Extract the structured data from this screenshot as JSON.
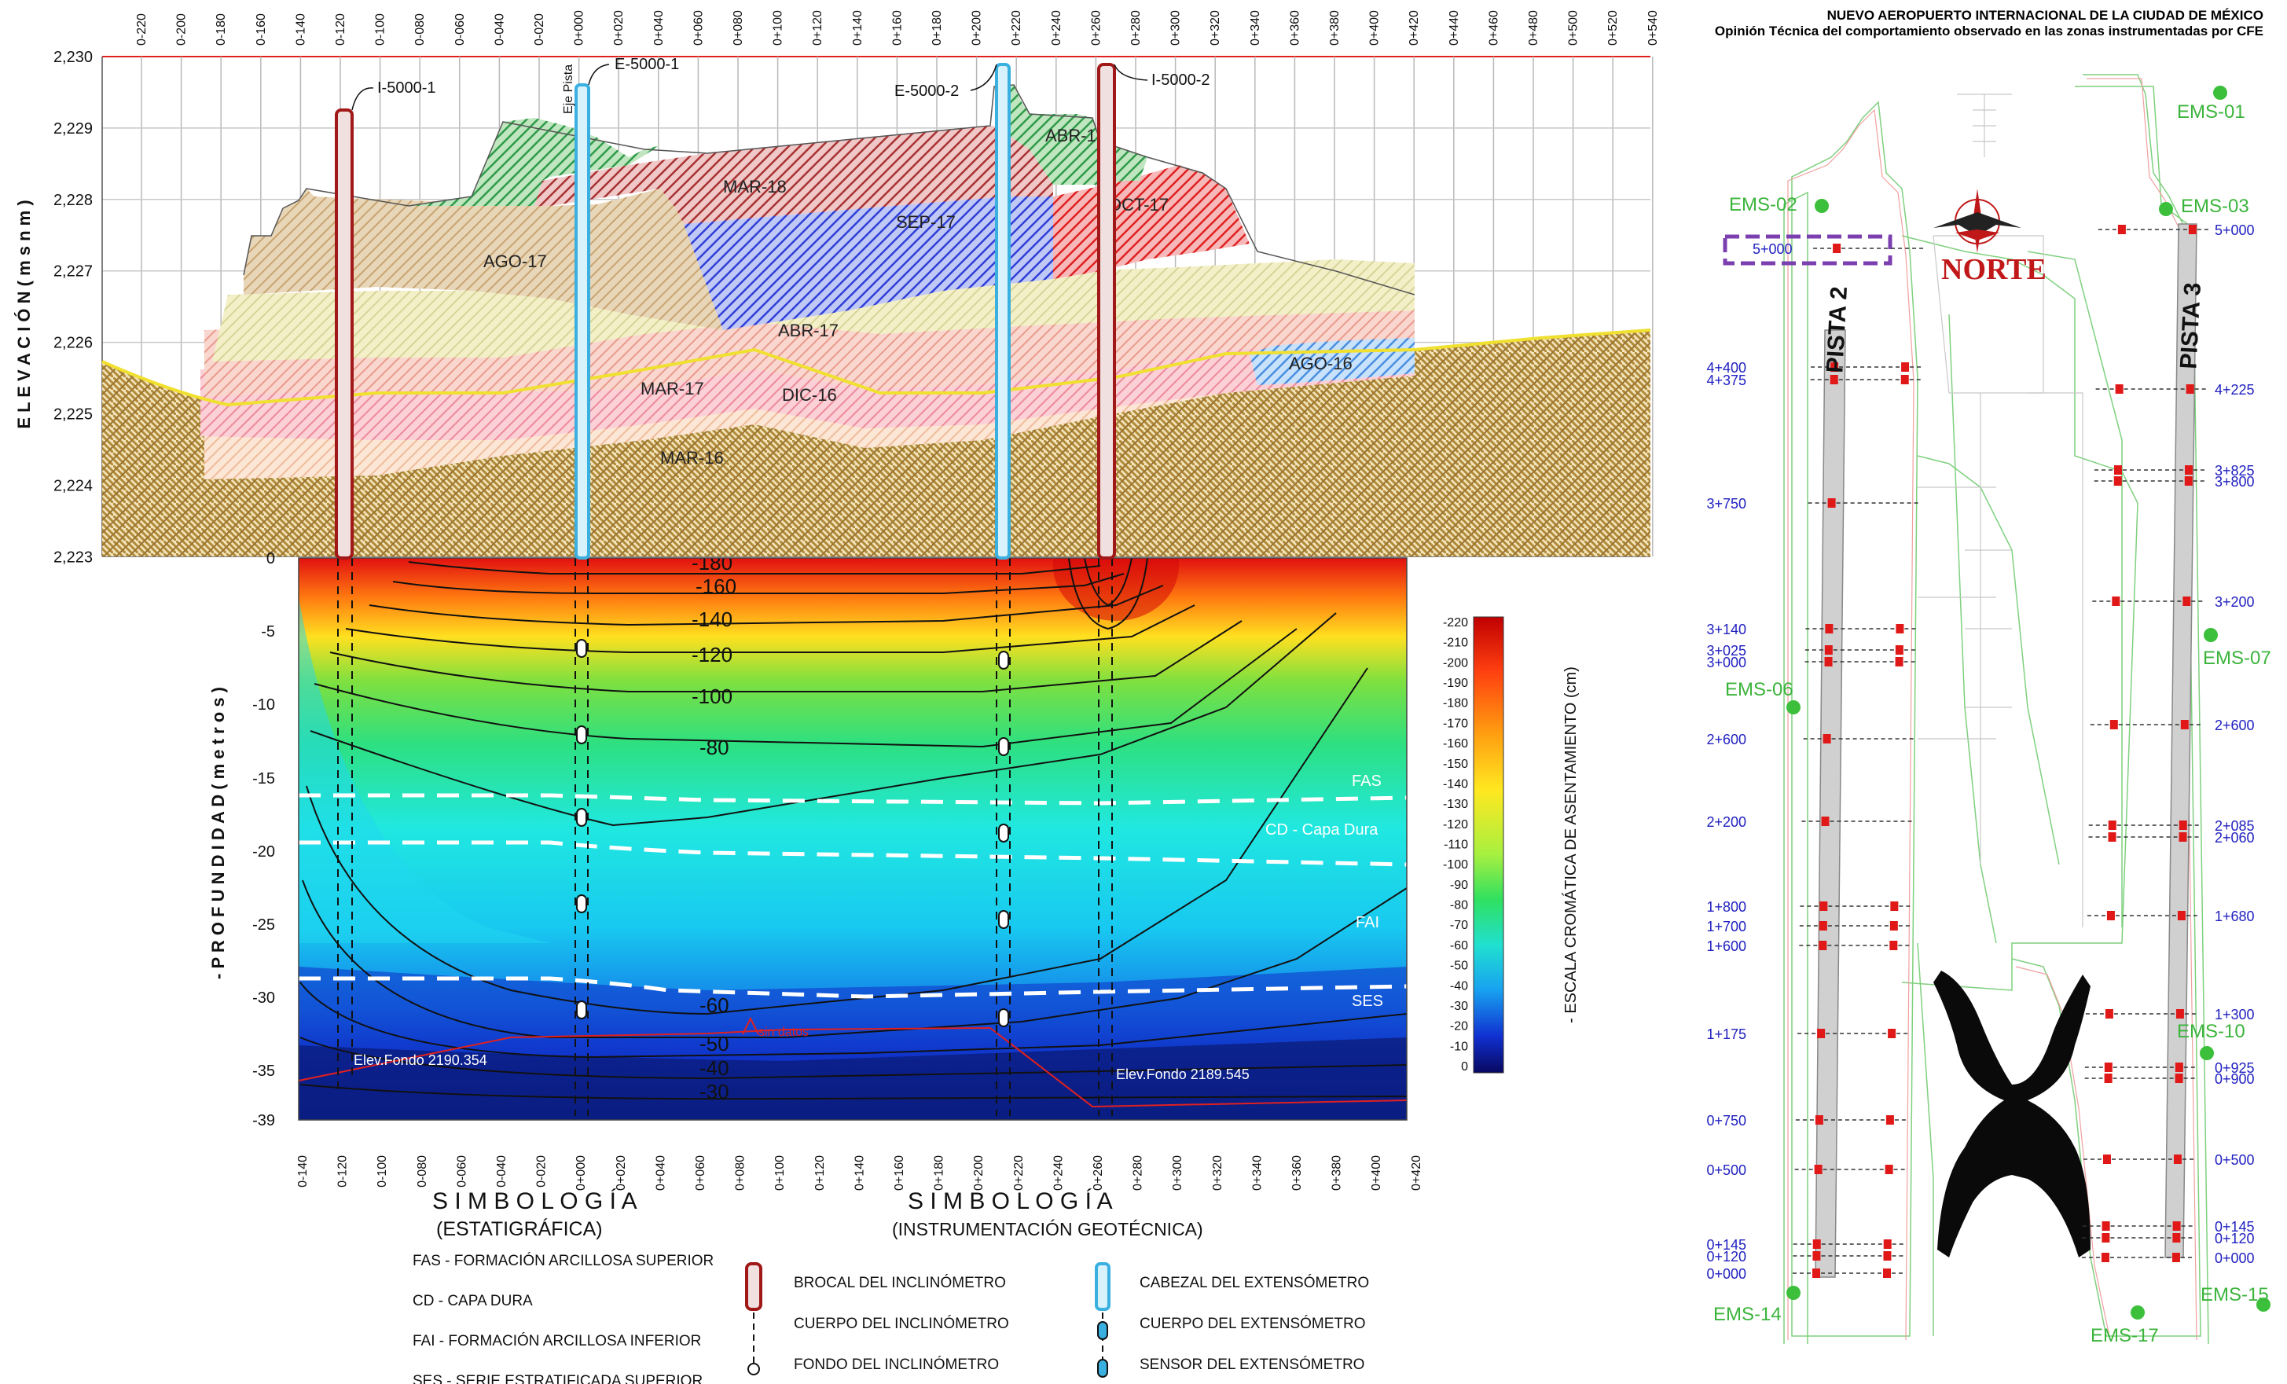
{
  "header": {
    "title": "NUEVO AEROPUERTO INTERNACIONAL DE LA CIUDAD DE MÉXICO",
    "subtitle": "Opinión Técnica del comportamiento observado en las zonas instrumentadas por CFE"
  },
  "stations": [
    "0-220",
    "0-200",
    "0-180",
    "0-160",
    "0-140",
    "0-120",
    "0-100",
    "0-080",
    "0-060",
    "0-040",
    "0-020",
    "0+000",
    "0+020",
    "0+040",
    "0+060",
    "0+080",
    "0+100",
    "0+120",
    "0+140",
    "0+160",
    "0+180",
    "0+200",
    "0+220",
    "0+240",
    "0+260",
    "0+280",
    "0+300",
    "0+320",
    "0+340",
    "0+360",
    "0+380",
    "0+400",
    "0+420",
    "0+440",
    "0+460",
    "0+480",
    "0+500",
    "0+520",
    "0+540"
  ],
  "bottom_stations": [
    "0-140",
    "0-120",
    "0-100",
    "0-080",
    "0-060",
    "0-040",
    "0-020",
    "0+000",
    "0+020",
    "0+040",
    "0+060",
    "0+080",
    "0+100",
    "0+120",
    "0+140",
    "0+160",
    "0+180",
    "0+200",
    "0+220",
    "0+240",
    "0+260",
    "0+280",
    "0+300",
    "0+320",
    "0+340",
    "0+360",
    "0+380",
    "0+400",
    "0+420"
  ],
  "profile": {
    "y_axis_label": "E L E V A C I Ó N  ( m s n m )",
    "y_ticks": [
      "2,230",
      "2,229",
      "2,228",
      "2,227",
      "2,226",
      "2,225",
      "2,224",
      "2,223"
    ],
    "layers": [
      "AGO-17",
      "MAR-18",
      "ABR-18",
      "SEP-17",
      "OCT-17",
      "ABR-17",
      "AGO-16",
      "MAR-17",
      "DIC-16",
      "MAR-16"
    ],
    "instruments": [
      "I-5000-1",
      "E-5000-1",
      "E-5000-2",
      "I-5000-2"
    ],
    "eje_label": "Eje Pista"
  },
  "contour": {
    "y_axis_label": "-  P R O F U N D I D A D  ( m e t r o s )",
    "y_ticks": [
      "0",
      "-5",
      "-10",
      "-15",
      "-20",
      "-25",
      "-30",
      "-35",
      "-39"
    ],
    "contour_labels": [
      "-180",
      "-160",
      "-140",
      "-120",
      "-100",
      "-80",
      "-60",
      "-50",
      "-40",
      "-30"
    ],
    "zones": [
      "FAS",
      "CD - Capa Dura",
      "FAI",
      "SES"
    ],
    "annotations": [
      "Elev.Fondo 2190.354",
      "Elev.Fondo 2189.545",
      "sin datos"
    ]
  },
  "colorbar": {
    "ticks": [
      "-220",
      "-210",
      "-200",
      "-190",
      "-180",
      "-170",
      "-160",
      "-150",
      "-140",
      "-130",
      "-120",
      "-110",
      "-100",
      "-90",
      "-80",
      "-70",
      "-60",
      "-50",
      "-40",
      "-30",
      "-20",
      "-10",
      "0"
    ],
    "label": "- ESCALA CROMÁTICA DE ASENTAMIENTO (cm)"
  },
  "legend": {
    "strat_title": "S I M B O L O G Í A",
    "strat_subtitle": "(ESTATIGRÁFICA)",
    "strat_items": [
      "FAS - FORMACIÓN ARCILLOSA SUPERIOR",
      "CD - CAPA DURA",
      "FAI - FORMACIÓN ARCILLOSA INFERIOR",
      "SES - SERIE ESTRATIFICADA SUPERIOR"
    ],
    "inst_title": "S I M B O L O G Í A",
    "inst_subtitle": "(INSTRUMENTACIÓN GEOTÉCNICA)",
    "inst_items": [
      "BROCAL DEL INCLINÓMETRO",
      "CUERPO DEL INCLINÓMETRO",
      "FONDO DEL INCLINÓMETRO",
      "CABEZAL DEL EXTENSÓMETRO",
      "CUERPO DEL EXTENSÓMETRO",
      "SENSOR DEL EXTENSÓMETRO"
    ]
  },
  "map": {
    "pista2": "PISTA 2",
    "pista3": "PISTA 3",
    "north": "NORTE",
    "ems": [
      "EMS-01",
      "EMS-02",
      "EMS-03",
      "EMS-06",
      "EMS-07",
      "EMS-10",
      "EMS-14",
      "EMS-15",
      "EMS-17"
    ],
    "p2_stations": [
      "5+000",
      "4+400",
      "4+375",
      "3+750",
      "3+140",
      "3+025",
      "3+000",
      "2+600",
      "2+200",
      "1+800",
      "1+700",
      "1+600",
      "1+175",
      "0+750",
      "0+500",
      "0+145",
      "0+120",
      "0+000"
    ],
    "p3_stations": [
      "5+000",
      "4+225",
      "3+825",
      "3+800",
      "3+200",
      "2+600",
      "2+085",
      "2+060",
      "1+680",
      "1+300",
      "0+925",
      "0+900",
      "0+500",
      "0+145",
      "0+120",
      "0+000"
    ]
  }
}
